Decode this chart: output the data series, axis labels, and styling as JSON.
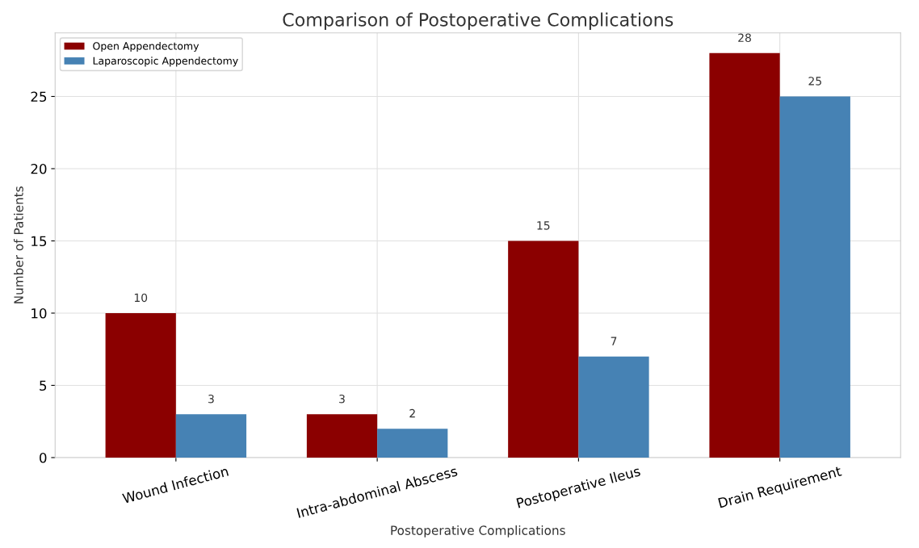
{
  "chart_data": {
    "type": "bar",
    "title": "Comparison of Postoperative Complications",
    "xlabel": "Postoperative Complications",
    "ylabel": "Number of Patients",
    "categories": [
      "Wound Infection",
      "Intra-abdominal Abscess",
      "Postoperative Ileus",
      "Drain Requirement"
    ],
    "series": [
      {
        "name": "Open Appendectomy",
        "color": "#8b0000",
        "values": [
          10,
          3,
          15,
          28
        ]
      },
      {
        "name": "Laparoscopic Appendectomy",
        "color": "#4682b4",
        "values": [
          3,
          2,
          7,
          25
        ]
      }
    ],
    "ylim": [
      0,
      29.4
    ],
    "yticks": [
      0,
      5,
      10,
      15,
      20,
      25
    ],
    "grid": true,
    "legend": "top left",
    "data_labels": true
  }
}
